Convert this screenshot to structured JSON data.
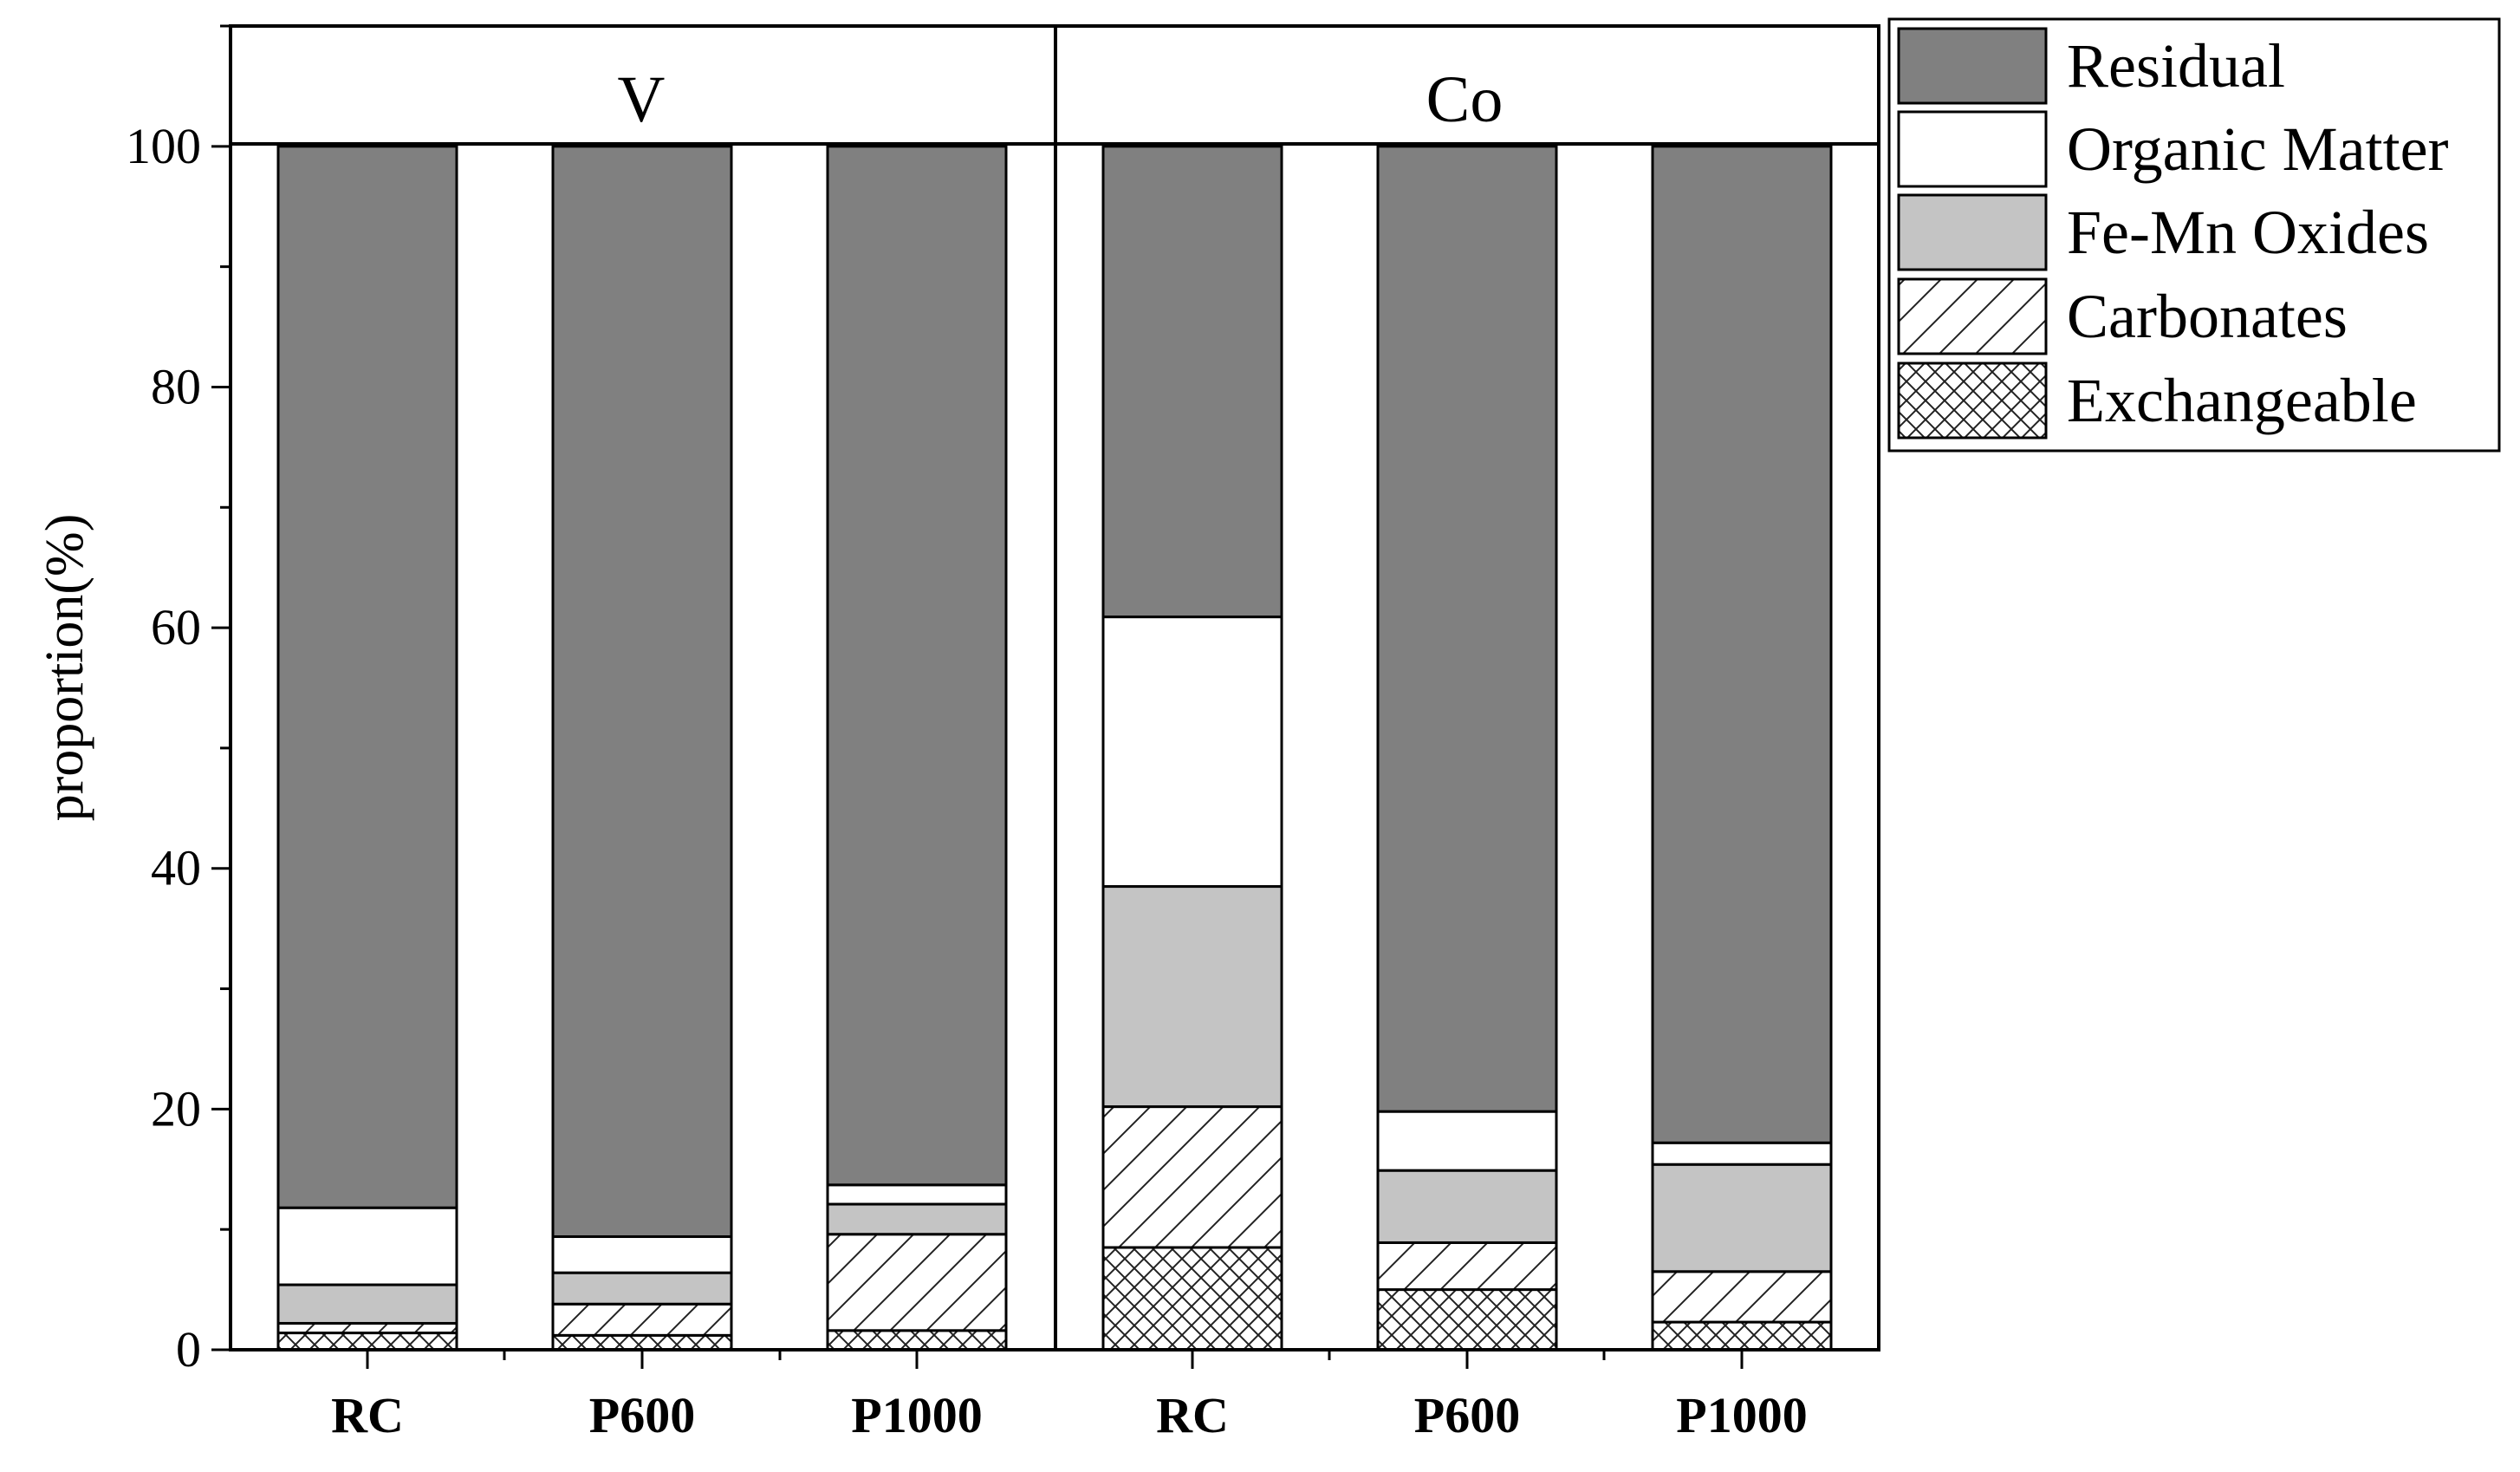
{
  "chart_data": {
    "type": "bar",
    "stacked": true,
    "panels": [
      {
        "title": "V",
        "categories": [
          "RC",
          "P600",
          "P1000"
        ],
        "series": [
          {
            "name": "Exchangeable",
            "values": [
              1.4,
              1.2,
              1.6
            ]
          },
          {
            "name": "Carbonates",
            "values": [
              0.8,
              2.6,
              8.0
            ]
          },
          {
            "name": "Fe-Mn Oxides",
            "values": [
              3.2,
              2.6,
              2.5
            ]
          },
          {
            "name": "Organic Matter",
            "values": [
              6.4,
              3.0,
              1.6
            ]
          },
          {
            "name": "Residual",
            "values": [
              88.2,
              90.6,
              86.3
            ]
          }
        ]
      },
      {
        "title": "Co",
        "categories": [
          "RC",
          "P600",
          "P1000"
        ],
        "series": [
          {
            "name": "Exchangeable",
            "values": [
              8.5,
              5.0,
              2.3
            ]
          },
          {
            "name": "Carbonates",
            "values": [
              11.7,
              3.9,
              4.2
            ]
          },
          {
            "name": "Fe-Mn Oxides",
            "values": [
              18.3,
              6.0,
              8.9
            ]
          },
          {
            "name": "Organic Matter",
            "values": [
              22.4,
              4.9,
              1.8
            ]
          },
          {
            "name": "Residual",
            "values": [
              39.1,
              80.2,
              82.8
            ]
          }
        ]
      }
    ],
    "ylabel": "proportion(%)",
    "xlabel": "",
    "ylim": [
      0,
      110
    ],
    "yticks": [
      0,
      20,
      40,
      60,
      80,
      100
    ],
    "legend_position": "right",
    "legend_order": [
      "Residual",
      "Organic Matter",
      "Fe-Mn Oxides",
      "Carbonates",
      "Exchangeable"
    ],
    "colors": {
      "Residual": "#808080",
      "Organic Matter": "#ffffff",
      "Fe-Mn Oxides": "#c4c4c4",
      "Carbonates": "#ffffff",
      "Exchangeable": "#ffffff"
    },
    "patterns": {
      "Residual": "solid",
      "Organic Matter": "solid",
      "Fe-Mn Oxides": "solid",
      "Carbonates": "diagonal-hatch",
      "Exchangeable": "cross-hatch"
    }
  }
}
